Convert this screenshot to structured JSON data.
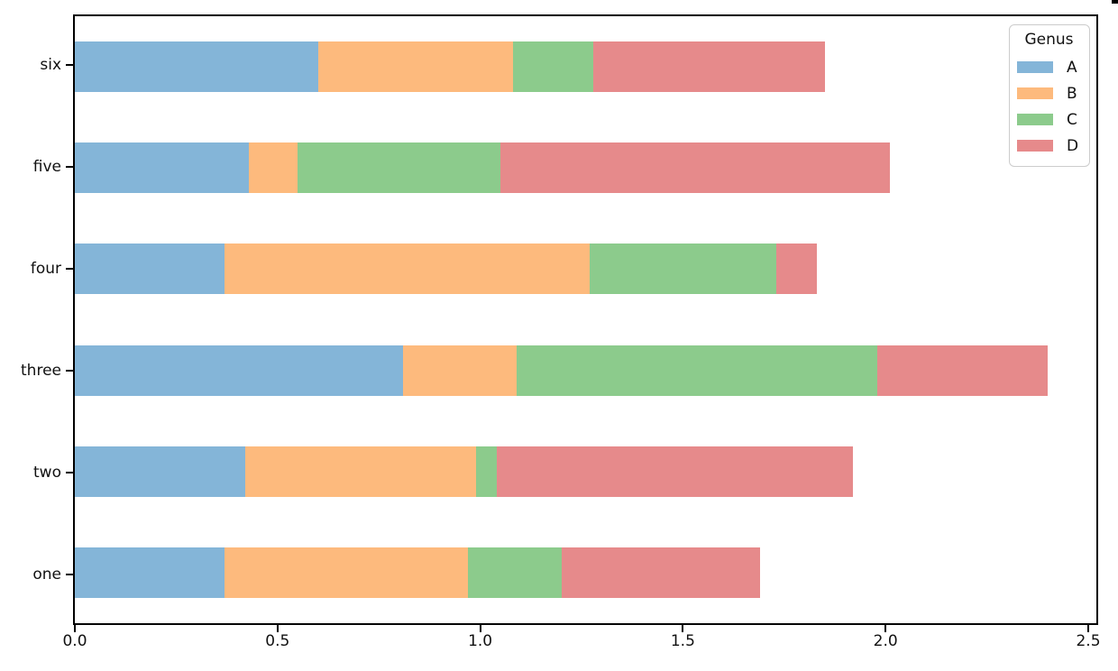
{
  "chart_data": {
    "type": "bar",
    "orientation": "horizontal",
    "stacked": true,
    "title": "",
    "xlabel": "",
    "ylabel": "",
    "grid": false,
    "categories_top_to_bottom": [
      "six",
      "five",
      "four",
      "three",
      "two",
      "one"
    ],
    "series": [
      {
        "name": "A",
        "color": "#84b5d8",
        "values_top_to_bottom": [
          0.6,
          0.43,
          0.37,
          0.81,
          0.42,
          0.37
        ]
      },
      {
        "name": "B",
        "color": "#fdba7d",
        "values_top_to_bottom": [
          0.48,
          0.12,
          0.9,
          0.28,
          0.57,
          0.6
        ]
      },
      {
        "name": "C",
        "color": "#8ccb8c",
        "values_top_to_bottom": [
          0.2,
          0.5,
          0.46,
          0.89,
          0.05,
          0.23
        ]
      },
      {
        "name": "D",
        "color": "#e68a8b",
        "values_top_to_bottom": [
          0.57,
          0.96,
          0.1,
          0.42,
          0.88,
          0.49
        ]
      }
    ],
    "bar_totals_top_to_bottom": [
      1.85,
      2.01,
      1.83,
      2.4,
      1.92,
      1.69
    ],
    "x_ticks": [
      {
        "value": 0.0,
        "label": "0.0"
      },
      {
        "value": 0.5,
        "label": "0.5"
      },
      {
        "value": 1.0,
        "label": "1.0"
      },
      {
        "value": 1.5,
        "label": "1.5"
      },
      {
        "value": 2.0,
        "label": "2.0"
      },
      {
        "value": 2.5,
        "label": "2.5"
      }
    ],
    "xlim": [
      0,
      2.52
    ],
    "legend": {
      "title": "Genus",
      "position": "upper right",
      "entries": [
        "A",
        "B",
        "C",
        "D"
      ]
    }
  }
}
